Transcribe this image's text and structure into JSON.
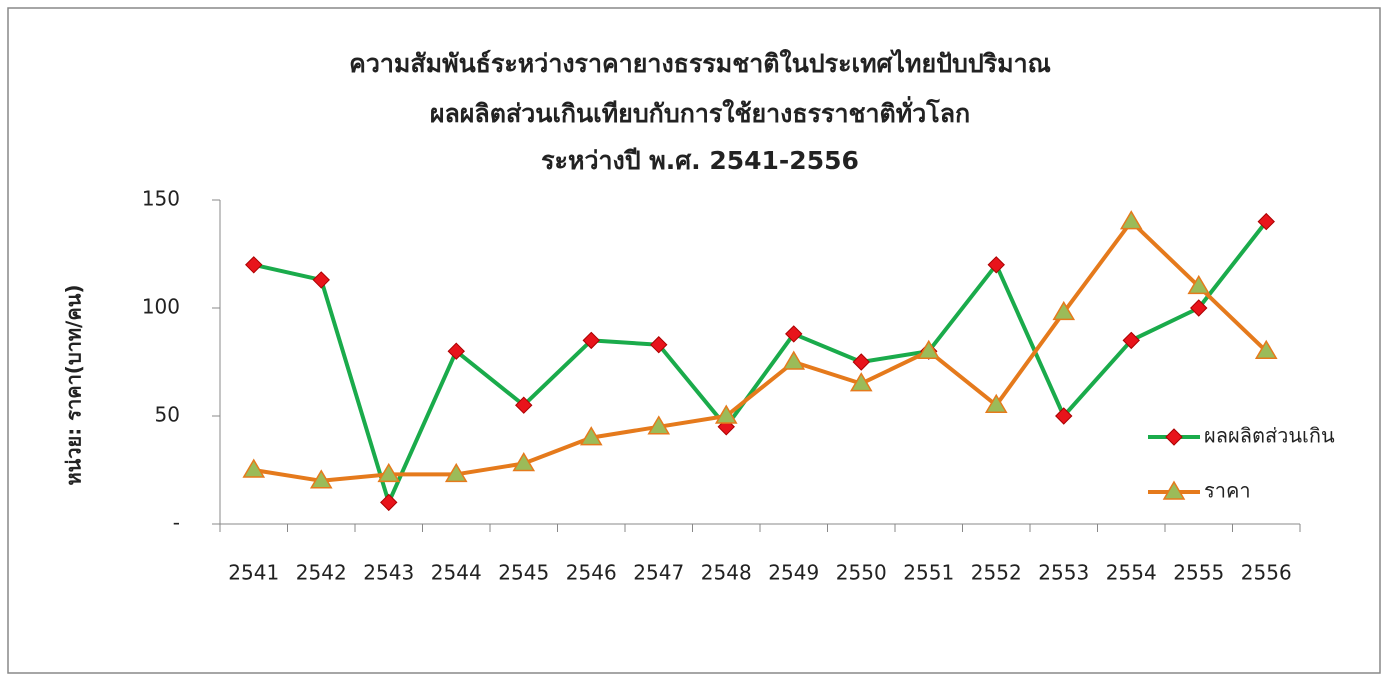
{
  "chart_data": {
    "type": "line",
    "title": [
      "ความสัมพันธ์ระหว่างราคายางธรรมชาติในประเทศไทยปับปริมาณ",
      "ผลผลิตส่วนเกินเทียบกับการใช้ยางธรราชาติทั่วโลก",
      "ระหว่างปี พ.ศ. 2541-2556"
    ],
    "y_label": "หน่วย: ราคา(บาท/คน)",
    "categories": [
      "2541",
      "2542",
      "2543",
      "2544",
      "2545",
      "2546",
      "2547",
      "2548",
      "2549",
      "2550",
      "2551",
      "2552",
      "2553",
      "2554",
      "2555",
      "2556"
    ],
    "series": [
      {
        "name": "ผลผลิตส่วนเกิน",
        "color": "#1aab4b",
        "marker": "diamond",
        "marker_color": "#e8141b",
        "values": [
          120,
          113,
          10,
          80,
          55,
          85,
          83,
          45,
          88,
          75,
          80,
          120,
          50,
          85,
          100,
          140
        ]
      },
      {
        "name": "ราคา",
        "color": "#e57a1c",
        "marker": "triangle",
        "marker_color": "#9bbb59",
        "values": [
          25,
          20,
          23,
          23,
          28,
          40,
          45,
          50,
          75,
          65,
          80,
          55,
          98,
          140,
          110,
          80
        ]
      }
    ],
    "ylim": [
      0,
      150
    ],
    "yticks": [
      {
        "value": 0,
        "label": "-"
      },
      50,
      100,
      150
    ],
    "legend": "right"
  }
}
